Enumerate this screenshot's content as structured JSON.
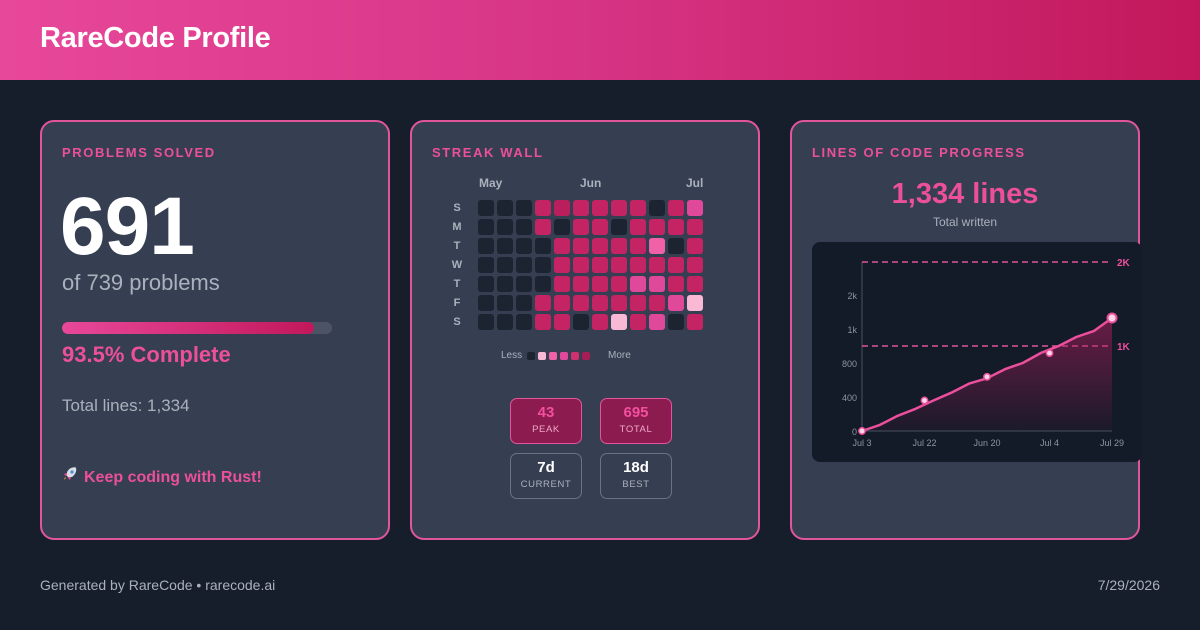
{
  "header": {
    "title": "RareCode Profile"
  },
  "problems": {
    "section_title": "PROBLEMS SOLVED",
    "solved": "691",
    "of_total": "of 739 problems",
    "progress_fraction": 0.935,
    "percent_label": "93.5% Complete",
    "total_lines": "Total lines: 1,334",
    "motto_icon": "rocket-icon",
    "motto": "Keep coding with Rust!"
  },
  "streak": {
    "section_title": "STREAK WALL",
    "months": [
      "May",
      "Jun",
      "Jul"
    ],
    "days": [
      "S",
      "M",
      "T",
      "W",
      "T",
      "F",
      "S"
    ],
    "grid": [
      [
        0,
        0,
        0,
        3,
        2,
        3,
        3,
        3,
        3,
        0,
        3,
        5
      ],
      [
        0,
        0,
        0,
        3,
        0,
        3,
        3,
        0,
        3,
        3,
        3,
        3
      ],
      [
        0,
        0,
        0,
        0,
        3,
        3,
        3,
        3,
        3,
        6,
        0,
        3
      ],
      [
        0,
        0,
        0,
        0,
        3,
        3,
        3,
        3,
        3,
        3,
        3,
        3
      ],
      [
        0,
        0,
        0,
        0,
        3,
        3,
        3,
        3,
        5,
        5,
        3,
        3
      ],
      [
        0,
        0,
        0,
        3,
        3,
        3,
        3,
        3,
        3,
        3,
        5,
        7
      ],
      [
        0,
        0,
        0,
        3,
        3,
        0,
        3,
        7,
        3,
        5,
        0,
        3
      ]
    ],
    "level_colors": [
      "#1c2331",
      "#a81c55",
      "#b81f5c",
      "#c42463",
      "#d0306e",
      "#e0489a",
      "#f061a8",
      "#f9b9d4"
    ],
    "legend": {
      "less": "Less",
      "more": "More",
      "colors": [
        "#1c2331",
        "#f9b9d4",
        "#f061a8",
        "#e0489a",
        "#d0306e",
        "#a81c55"
      ]
    },
    "stats": [
      {
        "value": "43",
        "label": "PEAK",
        "style": "highlight"
      },
      {
        "value": "695",
        "label": "TOTAL",
        "style": "highlight"
      },
      {
        "value": "7d",
        "label": "CURRENT",
        "style": "plain"
      },
      {
        "value": "18d",
        "label": "BEST",
        "style": "plain"
      }
    ]
  },
  "loc": {
    "section_title": "LINES OF CODE PROGRESS",
    "value": "1,334 lines",
    "caption": "Total written"
  },
  "chart_data": {
    "type": "area",
    "x_ticks": [
      "Jul 3",
      "Jul 22",
      "Jun 20",
      "Jul 4",
      "Jul 29"
    ],
    "y_ticks": [
      "0",
      "400",
      "800",
      "1k",
      "2k"
    ],
    "reference_lines": [
      {
        "label": "2K",
        "value": 2000
      },
      {
        "label": "1K",
        "value": 1000
      }
    ],
    "series": [
      {
        "values": [
          0,
          90,
          180,
          280,
          360,
          470,
          560,
          640,
          730,
          820,
          920,
          1020,
          1110,
          1200,
          1334
        ]
      }
    ],
    "markers": [
      0,
      360,
      640,
      920,
      1334
    ],
    "ylim": [
      0,
      2000
    ],
    "grid": false,
    "line_color": "#ec4f9b"
  },
  "footer": {
    "credit": "Generated by RareCode • rarecode.ai",
    "date": "7/29/2026"
  }
}
